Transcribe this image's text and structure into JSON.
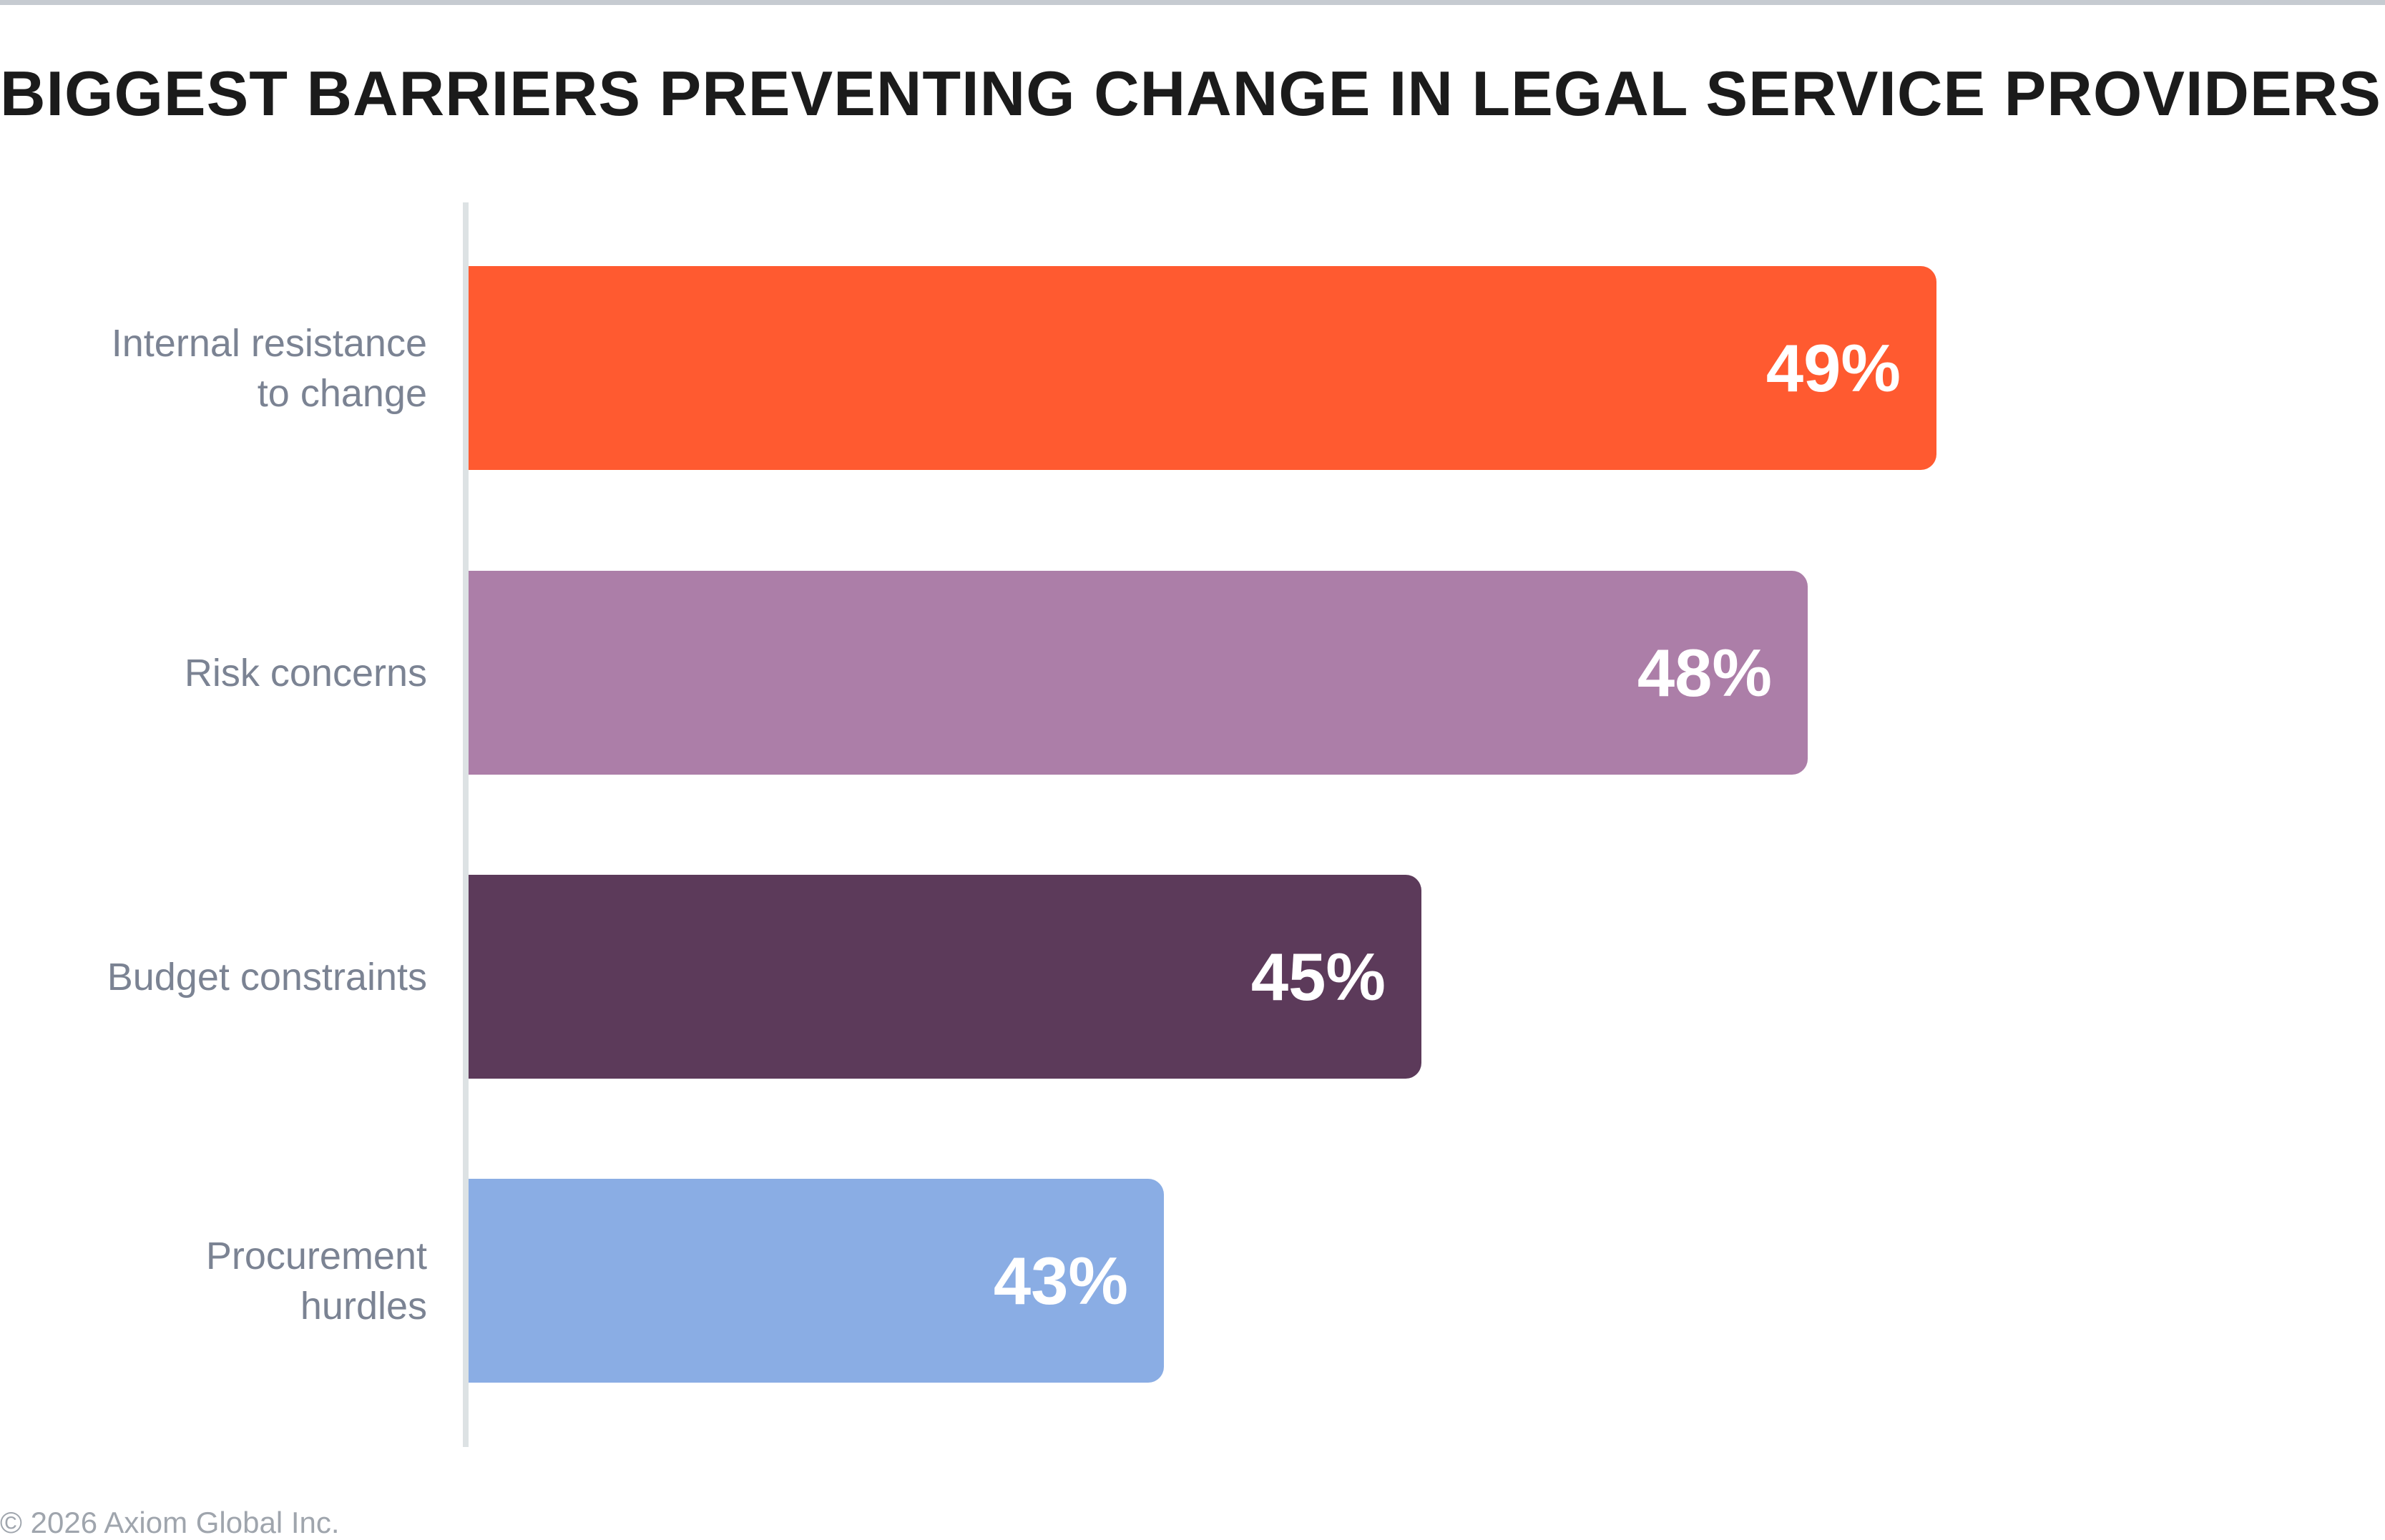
{
  "chart_data": {
    "type": "bar",
    "orientation": "horizontal",
    "title": "BIGGEST BARRIERS PREVENTING CHANGE IN LEGAL SERVICE PROVIDERS",
    "categories": [
      "Internal resistance to change",
      "Risk concerns",
      "Budget constraints",
      "Procurement hurdles"
    ],
    "category_lines": [
      [
        "Internal resistance",
        "to change"
      ],
      [
        "Risk concerns"
      ],
      [
        "Budget constraints"
      ],
      [
        "Procurement",
        "hurdles"
      ]
    ],
    "values": [
      49,
      48,
      45,
      43
    ],
    "data_labels": [
      "49%",
      "48%",
      "45%",
      "43%"
    ],
    "colors": [
      "#ff5a30",
      "#ac7ea8",
      "#5c3a5a",
      "#8aade4"
    ],
    "xlabel": "",
    "ylabel": "",
    "grid": false,
    "legend": "none"
  },
  "footer": "© 2026 Axiom Global Inc."
}
